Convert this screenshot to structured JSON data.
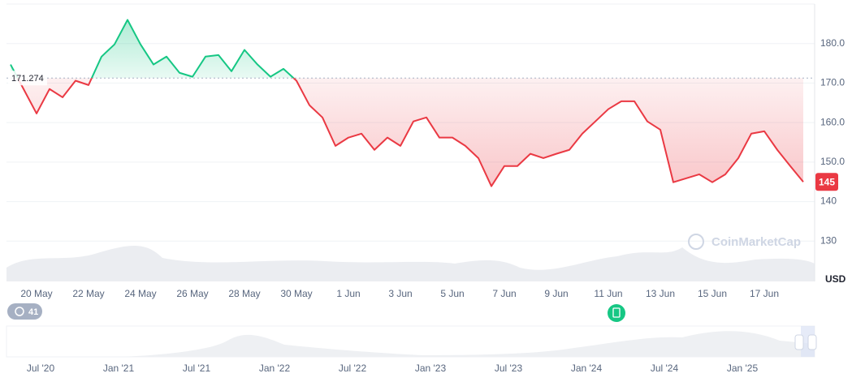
{
  "chart_data": {
    "type": "line",
    "categories": [
      null,
      null,
      "20 May",
      null,
      null,
      null,
      "22 May",
      null,
      null,
      null,
      "24 May",
      null,
      null,
      null,
      "26 May",
      null,
      null,
      null,
      "28 May",
      null,
      null,
      null,
      "30 May",
      null,
      null,
      null,
      "1 Jun",
      null,
      null,
      null,
      "3 Jun",
      null,
      null,
      null,
      "5 Jun",
      null,
      null,
      null,
      "7 Jun",
      null,
      null,
      null,
      "9 Jun",
      null,
      null,
      null,
      "11 Jun",
      null,
      null,
      null,
      "13 Jun",
      null,
      null,
      null,
      "15 Jun",
      null,
      null,
      null,
      "17 Jun",
      null,
      null,
      null
    ],
    "values": [
      174.7,
      168.5,
      162.3,
      168.5,
      166.4,
      170.6,
      169.5,
      176.7,
      179.8,
      186,
      179.8,
      174.7,
      176.7,
      172.6,
      171.6,
      176.7,
      177.1,
      173,
      178.4,
      174.7,
      171.6,
      173.6,
      170.6,
      164.4,
      161.3,
      154.1,
      156.2,
      157.2,
      153.1,
      156.2,
      154.1,
      160.3,
      161.3,
      156.2,
      156.2,
      154.1,
      151,
      143.9,
      149,
      149,
      152.1,
      151,
      152.1,
      153.1,
      157.2,
      160.3,
      163.4,
      165.4,
      165.4,
      160.3,
      158.2,
      144.9,
      145.9,
      146.9,
      144.9,
      146.9,
      151,
      157.2,
      157.8,
      153.1,
      149,
      145
    ],
    "baseline": 171.274,
    "current_price": 145,
    "up_color": "#16c784",
    "down_color": "#ea3943",
    "ylim": [
      120,
      190
    ],
    "yticks": [
      130,
      140,
      {
        "value": 150,
        "label": "150.0"
      },
      {
        "value": 160,
        "label": "160.0"
      },
      {
        "value": 170,
        "label": "170.0"
      },
      {
        "value": 180,
        "label": "180.0"
      }
    ],
    "grid": true,
    "currency": "USD",
    "watermark": "CoinMarketCap",
    "history_badge": "41",
    "navigator_labels": [
      "Jul '20",
      "Jan '21",
      "Jul '21",
      "Jan '22",
      "Jul '22",
      "Jan '23",
      "Jul '23",
      "Jan '24",
      "Jul '24",
      "Jan '25"
    ]
  }
}
